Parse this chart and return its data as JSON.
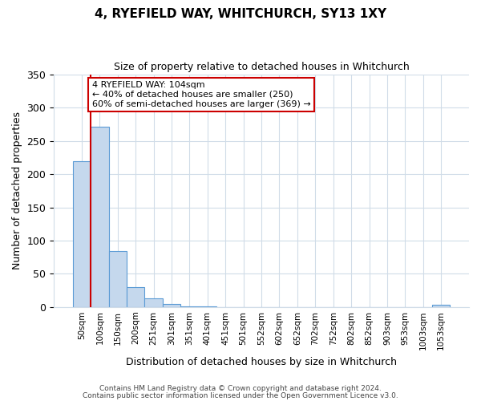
{
  "title": "4, RYEFIELD WAY, WHITCHURCH, SY13 1XY",
  "subtitle": "Size of property relative to detached houses in Whitchurch",
  "xlabel": "Distribution of detached houses by size in Whitchurch",
  "ylabel": "Number of detached properties",
  "bar_labels": [
    "50sqm",
    "100sqm",
    "150sqm",
    "200sqm",
    "251sqm",
    "301sqm",
    "351sqm",
    "401sqm",
    "451sqm",
    "501sqm",
    "552sqm",
    "602sqm",
    "652sqm",
    "702sqm",
    "752sqm",
    "802sqm",
    "852sqm",
    "903sqm",
    "953sqm",
    "1003sqm",
    "1053sqm"
  ],
  "bar_values": [
    220,
    272,
    84,
    30,
    13,
    4,
    1,
    1,
    0,
    0,
    0,
    0,
    0,
    0,
    0,
    0,
    0,
    0,
    0,
    0,
    3
  ],
  "bar_color": "#c5d8ed",
  "bar_edge_color": "#5b9bd5",
  "ylim": [
    0,
    350
  ],
  "yticks": [
    0,
    50,
    100,
    150,
    200,
    250,
    300,
    350
  ],
  "vline_x": 0.5,
  "vline_color": "#cc0000",
  "annotation_title": "4 RYEFIELD WAY: 104sqm",
  "annotation_line1": "← 40% of detached houses are smaller (250)",
  "annotation_line2": "60% of semi-detached houses are larger (369) →",
  "annotation_box_color": "#cc0000",
  "footer_line1": "Contains HM Land Registry data © Crown copyright and database right 2024.",
  "footer_line2": "Contains public sector information licensed under the Open Government Licence v3.0.",
  "background_color": "#ffffff",
  "grid_color": "#d0dce8"
}
